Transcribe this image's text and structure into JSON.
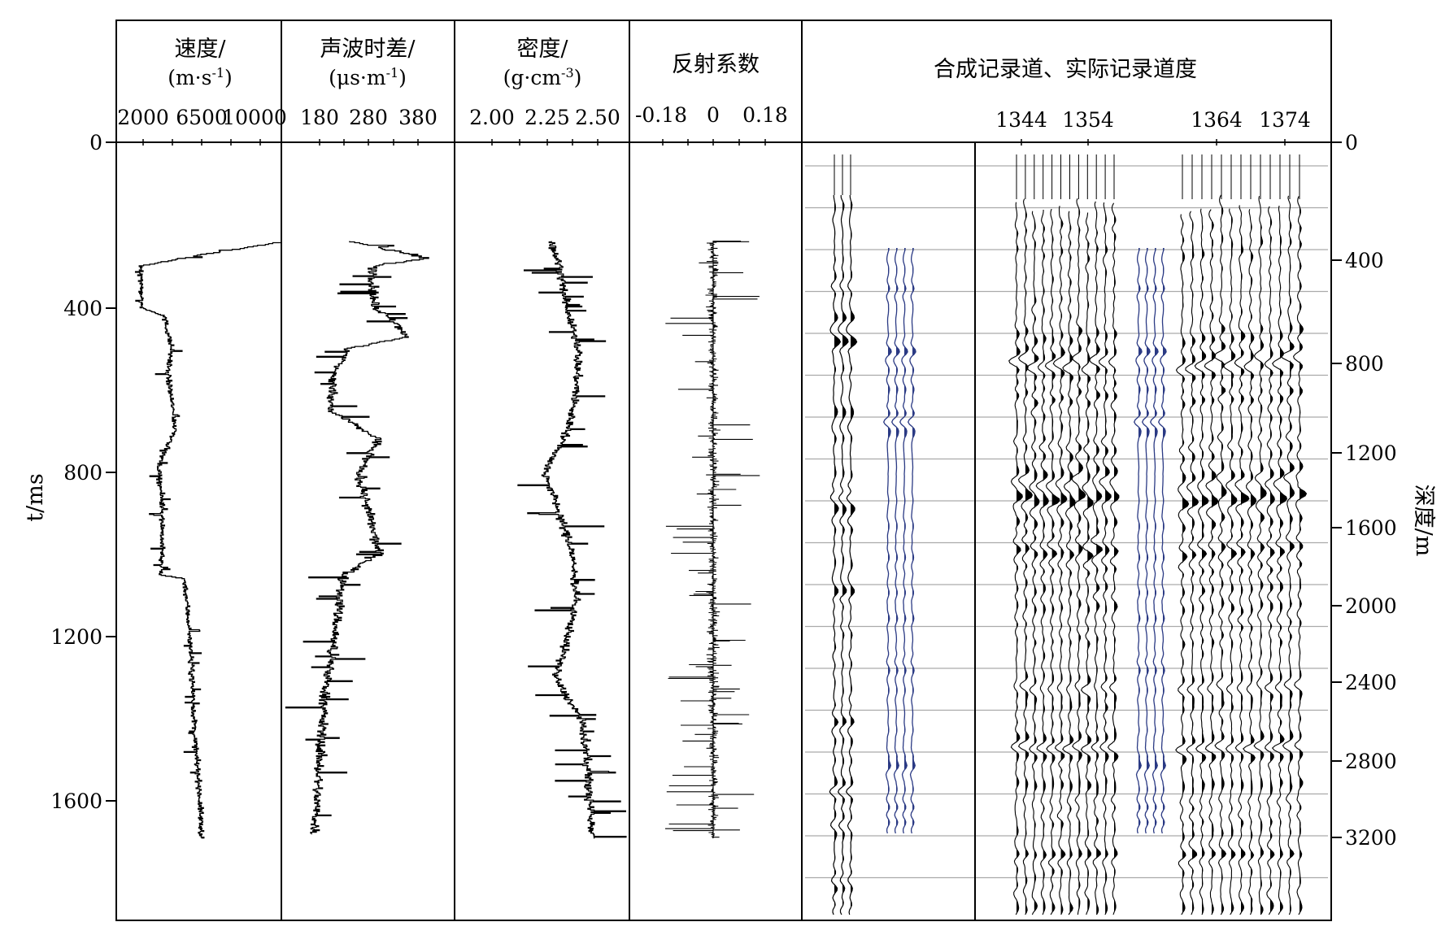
{
  "chart_data": {
    "type": "line",
    "left_axis": {
      "label": "t/ms",
      "ticks": [
        "0",
        "400",
        "800",
        "1200",
        "1600"
      ],
      "range": [
        0,
        1890
      ]
    },
    "right_axis": {
      "label": "深度/m",
      "ticks": [
        "0",
        "400",
        "800",
        "1200",
        "1600",
        "2000",
        "2400",
        "2800",
        "3200"
      ]
    },
    "panels": [
      {
        "title": "速度/",
        "unit": "(m·s-1)",
        "ticks": [
          "2000",
          "6500",
          "10000"
        ],
        "series": "velocity",
        "profile": [
          [
            240,
            12000
          ],
          [
            300,
            1800
          ],
          [
            400,
            1900
          ],
          [
            420,
            3600
          ],
          [
            500,
            4200
          ],
          [
            560,
            3900
          ],
          [
            700,
            4500
          ],
          [
            780,
            3200
          ],
          [
            900,
            3500
          ],
          [
            1050,
            3400
          ],
          [
            1060,
            5200
          ],
          [
            1200,
            5600
          ],
          [
            1320,
            5800
          ],
          [
            1460,
            6000
          ],
          [
            1560,
            6300
          ],
          [
            1690,
            6500
          ]
        ]
      },
      {
        "title": "声波时差/",
        "unit": "(μs·m-1)",
        "ticks": [
          "180",
          "280",
          "380"
        ],
        "series": "transit_time",
        "profile": [
          [
            240,
            240
          ],
          [
            280,
            400
          ],
          [
            300,
            290
          ],
          [
            400,
            290
          ],
          [
            420,
            320
          ],
          [
            470,
            360
          ],
          [
            500,
            240
          ],
          [
            560,
            210
          ],
          [
            650,
            200
          ],
          [
            720,
            300
          ],
          [
            800,
            260
          ],
          [
            900,
            280
          ],
          [
            1000,
            300
          ],
          [
            1050,
            230
          ],
          [
            1200,
            210
          ],
          [
            1350,
            190
          ],
          [
            1500,
            180
          ],
          [
            1680,
            170
          ]
        ]
      },
      {
        "title": "密度/",
        "unit": "(g·cm-3)",
        "ticks": [
          "2.00",
          "2.25",
          "2.50"
        ],
        "series": "density",
        "profile": [
          [
            240,
            2.28
          ],
          [
            300,
            2.32
          ],
          [
            400,
            2.35
          ],
          [
            500,
            2.41
          ],
          [
            600,
            2.4
          ],
          [
            700,
            2.36
          ],
          [
            800,
            2.25
          ],
          [
            900,
            2.32
          ],
          [
            1000,
            2.38
          ],
          [
            1100,
            2.4
          ],
          [
            1200,
            2.36
          ],
          [
            1300,
            2.3
          ],
          [
            1400,
            2.42
          ],
          [
            1500,
            2.45
          ],
          [
            1600,
            2.46
          ],
          [
            1690,
            2.48
          ]
        ]
      },
      {
        "title": "反射系数",
        "unit": "",
        "ticks": [
          "-0.18",
          "0",
          "0.18"
        ],
        "series": "reflection_coefficient",
        "profile": [
          [
            240,
            0
          ],
          [
            1690,
            0
          ]
        ]
      },
      {
        "title": "合成记录道、实际记录道度",
        "unit": "",
        "ticks": [
          "1344",
          "1354",
          "1364",
          "1374"
        ],
        "series": "seismic_traces"
      }
    ]
  }
}
